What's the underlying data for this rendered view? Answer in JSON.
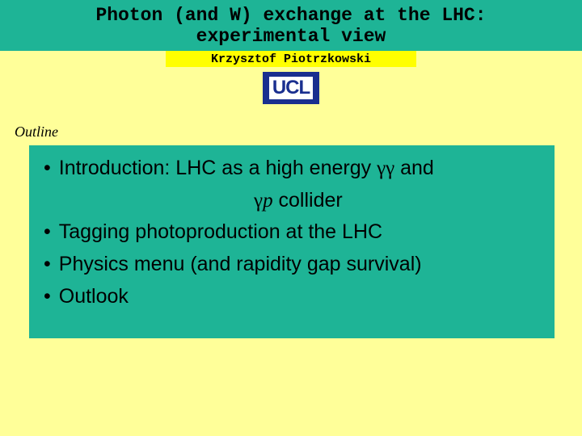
{
  "title_line1": "Photon (and W) exchange at the LHC:",
  "title_line2": "experimental view",
  "author": "Krzysztof Piotrzkowski",
  "logo_text": "UCL",
  "outline_label": "Outline",
  "bullets": {
    "b1_pre": "Introduction: LHC as a high energy ",
    "b1_sym1": "γγ",
    "b1_mid": " and",
    "b1_cont_sym": "γ",
    "b1_cont_p": "p",
    "b1_cont_rest": " collider",
    "b2": "Tagging photoproduction at the LHC",
    "b3": "Physics menu (and rapidity gap survival)",
    "b4": "Outlook"
  },
  "colors": {
    "page_bg": "#ffff99",
    "teal": "#1eb496",
    "yellow": "#ffff00",
    "logo_bg": "#1a2f8f",
    "text": "#000000"
  }
}
